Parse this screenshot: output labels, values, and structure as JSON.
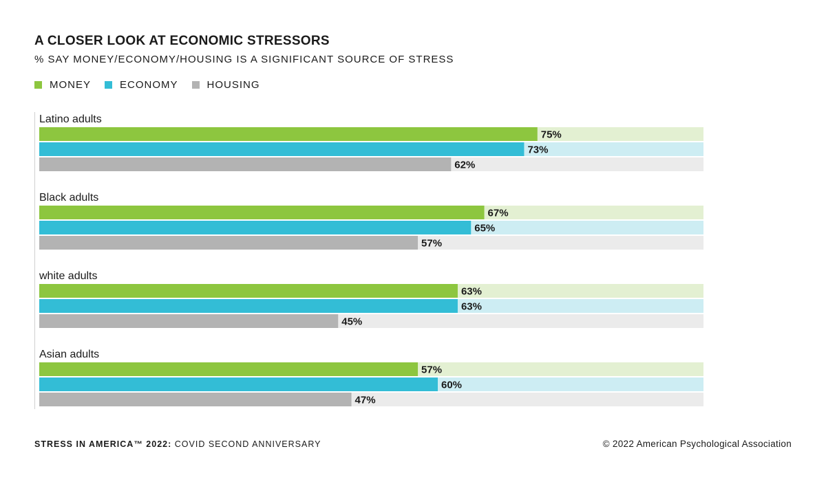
{
  "header": {
    "title": "A CLOSER LOOK AT ECONOMIC STRESSORS",
    "subtitle": "% SAY MONEY/ECONOMY/HOUSING IS A SIGNIFICANT SOURCE OF STRESS"
  },
  "legend": {
    "items": [
      {
        "label": "MONEY",
        "color": "#8dc63f"
      },
      {
        "label": "ECONOMY",
        "color": "#33bdd6"
      },
      {
        "label": "HOUSING",
        "color": "#b3b3b3"
      }
    ]
  },
  "colors": {
    "money": "#8dc63f",
    "money_track": "#e3f0d2",
    "economy": "#33bdd6",
    "economy_track": "#cdedf3",
    "housing": "#b3b3b3",
    "housing_track": "#ebebeb",
    "axis": "#d0d0d0"
  },
  "chart_data": {
    "type": "bar",
    "orientation": "horizontal",
    "title": "A CLOSER LOOK AT ECONOMIC STRESSORS",
    "subtitle": "% SAY MONEY/ECONOMY/HOUSING IS A SIGNIFICANT SOURCE OF STRESS",
    "categories": [
      "Latino adults",
      "Black adults",
      "white adults",
      "Asian adults"
    ],
    "series": [
      {
        "name": "MONEY",
        "values": [
          75,
          67,
          63,
          57
        ],
        "labels": [
          "75%",
          "67%",
          "63%",
          "57%"
        ]
      },
      {
        "name": "ECONOMY",
        "values": [
          73,
          65,
          63,
          60
        ],
        "labels": [
          "73%",
          "65%",
          "63%",
          "60%"
        ]
      },
      {
        "name": "HOUSING",
        "values": [
          62,
          57,
          45,
          47
        ],
        "labels": [
          "62%",
          "57%",
          "45%",
          "47%"
        ]
      }
    ],
    "xlim": [
      0,
      100
    ],
    "legend_position": "top-left",
    "grid": false
  },
  "footer": {
    "left_bold": "STRESS IN AMERICA™ 2022:",
    "left_rest": " COVID SECOND ANNIVERSARY",
    "right": "© 2022 American Psychological Association"
  }
}
